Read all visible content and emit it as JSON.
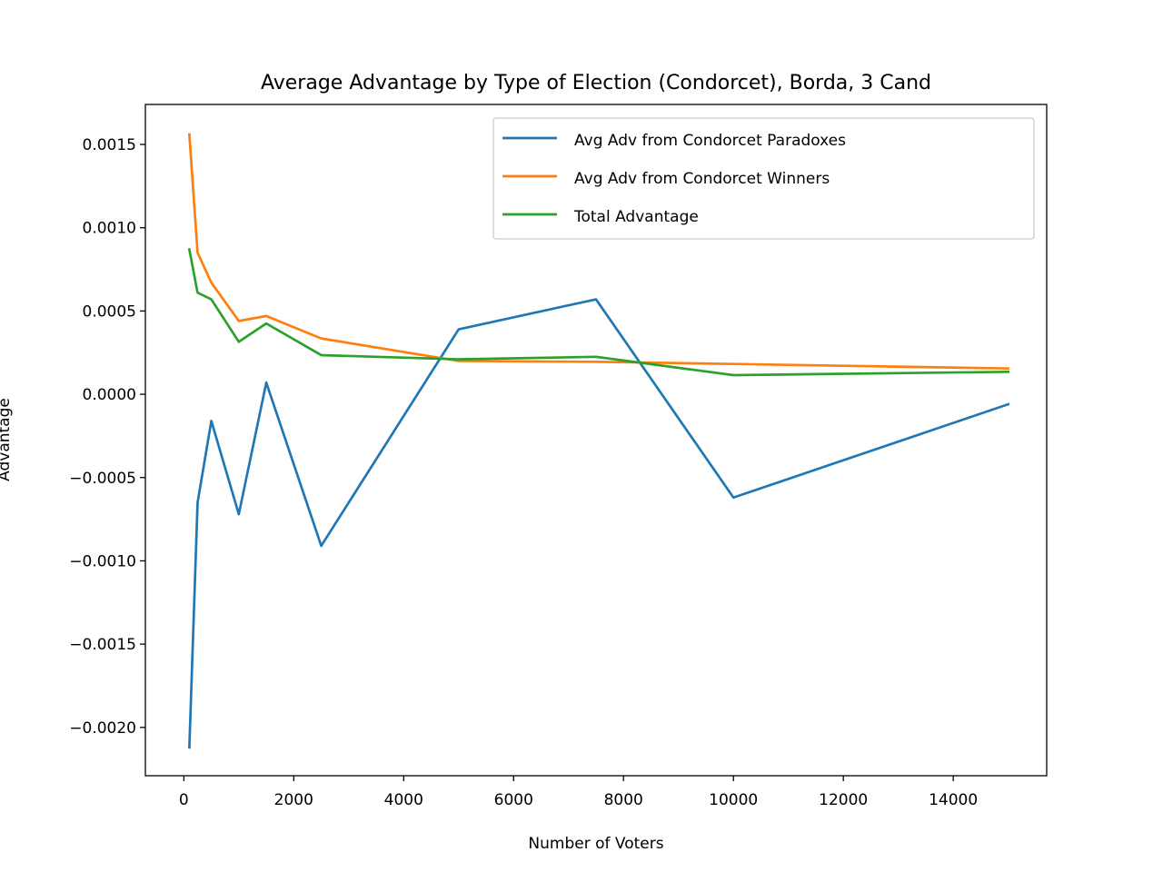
{
  "chart_data": {
    "type": "line",
    "title": "Average Advantage by Type of Election (Condorcet), Borda, 3 Cand",
    "xlabel": "Number of Voters",
    "ylabel": "Advantage",
    "xlim": [
      -700,
      15700
    ],
    "ylim": [
      -0.00229,
      0.00174
    ],
    "x_ticks": [
      0,
      2000,
      4000,
      6000,
      8000,
      10000,
      12000,
      14000
    ],
    "x_tick_labels": [
      "0",
      "2000",
      "4000",
      "6000",
      "8000",
      "10000",
      "12000",
      "14000"
    ],
    "y_ticks": [
      -0.002,
      -0.0015,
      -0.001,
      -0.0005,
      0.0,
      0.0005,
      0.001,
      0.0015
    ],
    "y_tick_labels": [
      "−0.0020",
      "−0.0015",
      "−0.0010",
      "−0.0005",
      "0.0000",
      "0.0005",
      "0.0010",
      "0.0015"
    ],
    "grid": false,
    "legend_position": "upper right",
    "x": [
      100,
      250,
      500,
      1000,
      1500,
      2500,
      5000,
      7500,
      10000,
      15000
    ],
    "series": [
      {
        "name": "Avg Adv from Condorcet Paradoxes",
        "color": "#1f77b4",
        "values": [
          -0.00212,
          -0.00065,
          -0.00016,
          -0.00072,
          7e-05,
          -0.00091,
          0.00039,
          0.00057,
          -0.00062,
          -6e-05
        ]
      },
      {
        "name": "Avg Adv from Condorcet Winners",
        "color": "#ff7f0e",
        "values": [
          0.00156,
          0.00085,
          0.00067,
          0.00044,
          0.00047,
          0.000335,
          0.0002,
          0.000195,
          0.000182,
          0.000155
        ]
      },
      {
        "name": "Total Advantage",
        "color": "#2ca02c",
        "values": [
          0.00087,
          0.00061,
          0.00057,
          0.000315,
          0.000425,
          0.000235,
          0.00021,
          0.000225,
          0.000115,
          0.000135
        ]
      }
    ]
  }
}
